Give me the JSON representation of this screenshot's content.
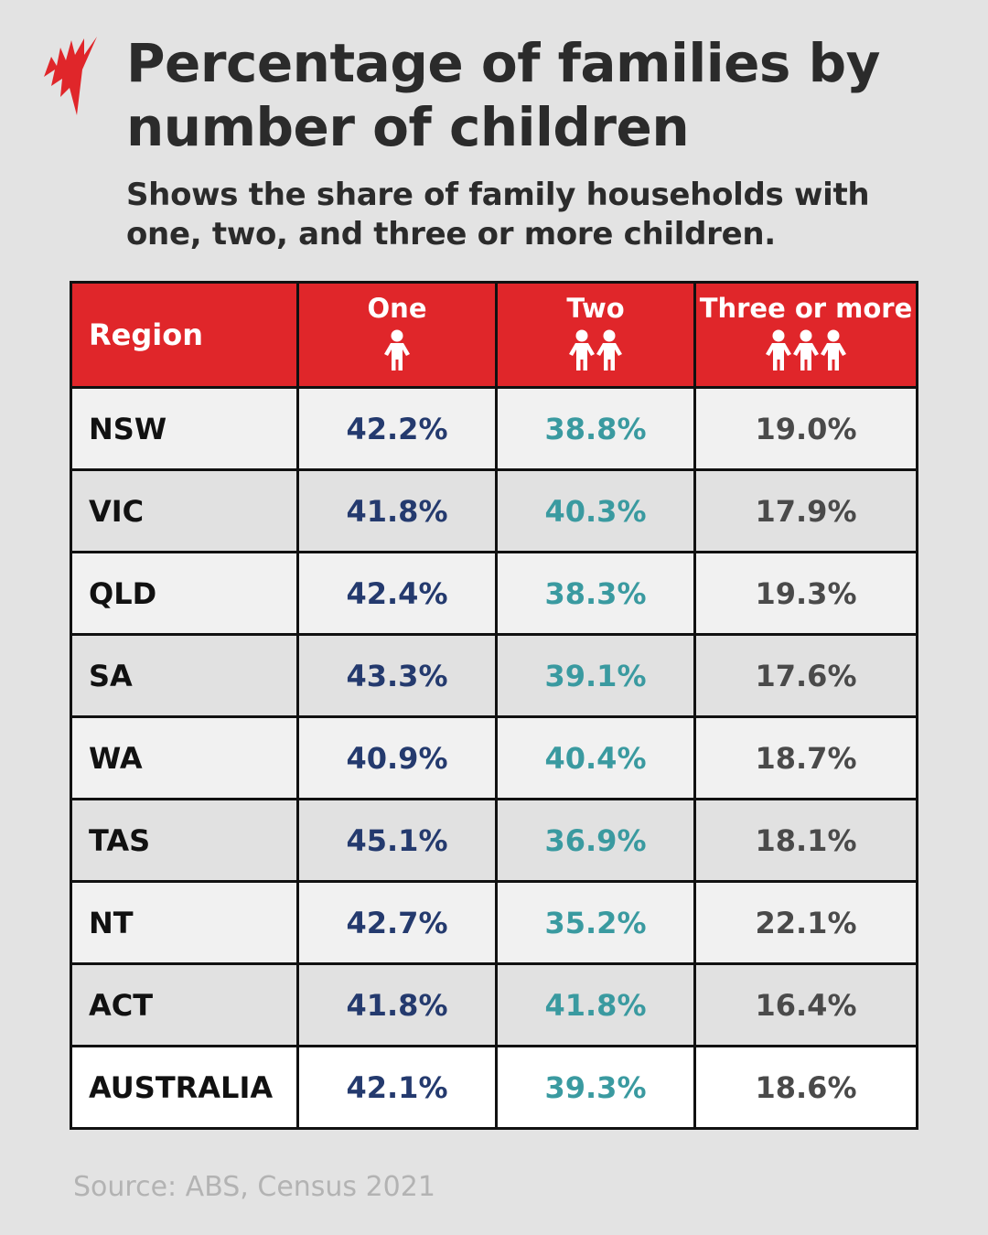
{
  "title": "Percentage of families by number of children",
  "subtitle": "Shows the share of family households with one, two, and three or more children.",
  "source": "Source: ABS, Census 2021",
  "logo": "SBS",
  "colors": {
    "header": "#e0262a",
    "one": "#243a6e",
    "two": "#3a9aa0",
    "three": "#4a4a4a",
    "logo": "#e0262a"
  },
  "chart_data": {
    "type": "table",
    "title": "Percentage of families by number of children",
    "columns": [
      "Region",
      "One",
      "Two",
      "Three or more"
    ],
    "column_icons": [
      "",
      "child-icon x1",
      "child-icon x2",
      "child-icon x3"
    ],
    "rows": [
      [
        "NSW",
        "42.2%",
        "38.8%",
        "19.0%"
      ],
      [
        "VIC",
        "41.8%",
        "40.3%",
        "17.9%"
      ],
      [
        "QLD",
        "42.4%",
        "38.3%",
        "19.3%"
      ],
      [
        "SA",
        "43.3%",
        "39.1%",
        "17.6%"
      ],
      [
        "WA",
        "40.9%",
        "40.4%",
        "18.7%"
      ],
      [
        "TAS",
        "45.1%",
        "36.9%",
        "18.1%"
      ],
      [
        "NT",
        "42.7%",
        "35.2%",
        "22.1%"
      ],
      [
        "ACT",
        "41.8%",
        "41.8%",
        "16.4%"
      ],
      [
        "AUSTRALIA",
        "42.1%",
        "39.3%",
        "18.6%"
      ]
    ]
  }
}
